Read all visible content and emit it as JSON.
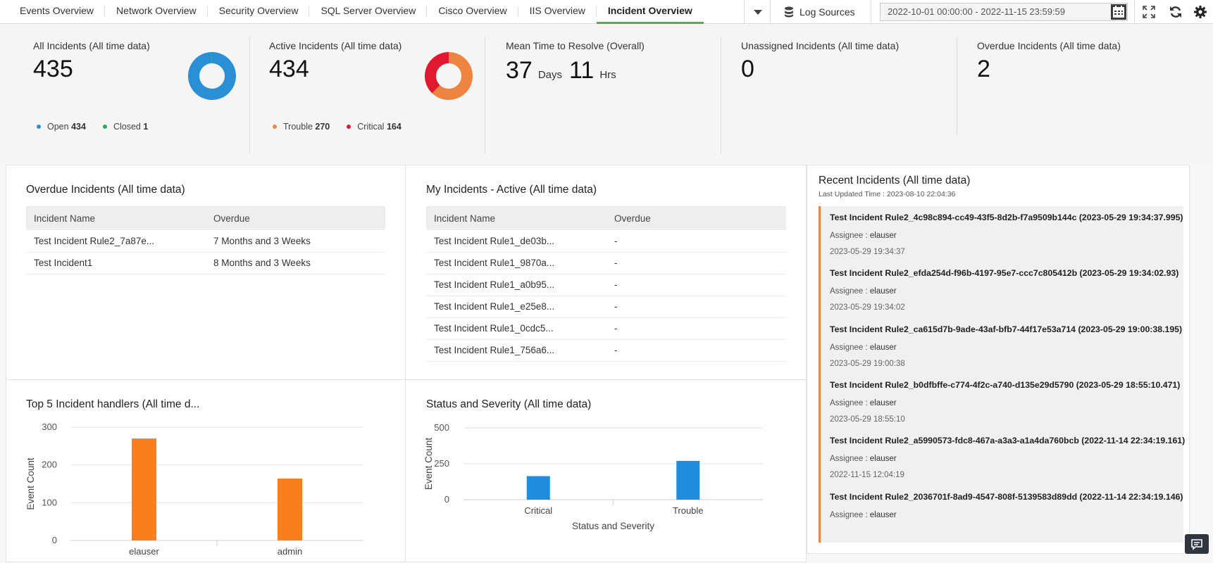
{
  "tabs": [
    {
      "label": "Events Overview",
      "active": false
    },
    {
      "label": "Network Overview",
      "active": false
    },
    {
      "label": "Security Overview",
      "active": false
    },
    {
      "label": "SQL Server Overview",
      "active": false
    },
    {
      "label": "Cisco Overview",
      "active": false
    },
    {
      "label": "IIS Overview",
      "active": false
    },
    {
      "label": "Incident Overview",
      "active": true
    }
  ],
  "toolbar": {
    "log_sources_label": "Log Sources",
    "date_range": "2022-10-01 00:00:00 - 2022-11-15 23:59:59"
  },
  "kpis": {
    "all": {
      "title": "All Incidents (All time data)",
      "value": "435",
      "open_label": "Open",
      "open_value": "434",
      "closed_label": "Closed",
      "closed_value": "1",
      "open_color": "#2b8fd6",
      "closed_color": "#27a85b"
    },
    "active": {
      "title": "Active Incidents (All time data)",
      "value": "434",
      "trouble_label": "Trouble",
      "trouble_value": "270",
      "critical_label": "Critical",
      "critical_value": "164",
      "trouble_color": "#ee8440",
      "critical_color": "#e0192f"
    },
    "mttr": {
      "title": "Mean Time to Resolve (Overall)",
      "days": "37",
      "days_unit": "Days",
      "hours": "11",
      "hours_unit": "Hrs"
    },
    "unassigned": {
      "title": "Unassigned Incidents (All time data)",
      "value": "0"
    },
    "overdue": {
      "title": "Overdue Incidents (All time data)",
      "value": "2"
    }
  },
  "overdue_panel": {
    "title": "Overdue Incidents (All time data)",
    "col_name": "Incident Name",
    "col_overdue": "Overdue",
    "rows": [
      {
        "name": "Test Incident Rule2_7a87e...",
        "overdue": "7 Months and 3 Weeks"
      },
      {
        "name": "Test Incident1",
        "overdue": "8 Months and 3 Weeks"
      }
    ]
  },
  "my_panel": {
    "title": "My Incidents - Active (All time data)",
    "col_name": "Incident Name",
    "col_overdue": "Overdue",
    "rows": [
      {
        "name": "Test Incident Rule1_de03b...",
        "overdue": "-"
      },
      {
        "name": "Test Incident Rule1_9870a...",
        "overdue": "-"
      },
      {
        "name": "Test Incident Rule1_a0b95...",
        "overdue": "-"
      },
      {
        "name": "Test Incident Rule1_e25e8...",
        "overdue": "-"
      },
      {
        "name": "Test Incident Rule1_0cdc5...",
        "overdue": "-"
      },
      {
        "name": "Test Incident Rule1_756a6...",
        "overdue": "-"
      }
    ]
  },
  "recent": {
    "title": "Recent Incidents (All time data)",
    "last_updated": "Last Updated Time : 2023-08-10 22:04:36",
    "assignee_label": "Assignee :",
    "items": [
      {
        "title": "Test Incident Rule2_4c98c894-cc49-43f5-8d2b-f7a9509b144c (2023-05-29 19:34:37.995)",
        "assignee": "elauser",
        "time": "2023-05-29 19:34:37"
      },
      {
        "title": "Test Incident Rule2_efda254d-f96b-4197-95e7-ccc7c805412b (2023-05-29 19:34:02.93)",
        "assignee": "elauser",
        "time": "2023-05-29 19:34:02"
      },
      {
        "title": "Test Incident Rule2_ca615d7b-9ade-43af-bfb7-44f17e53a714 (2023-05-29 19:00:38.195)",
        "assignee": "elauser",
        "time": "2023-05-29 19:00:38"
      },
      {
        "title": "Test Incident Rule2_b0dfbffe-c774-4f2c-a740-d135e29d5790 (2023-05-29 18:55:10.471)",
        "assignee": "elauser",
        "time": "2023-05-29 18:55:10"
      },
      {
        "title": "Test Incident Rule2_a5990573-fdc8-467a-a3a3-a1a4da760bcb (2022-11-14 22:34:19.161)",
        "assignee": "elauser",
        "time": "2022-11-15 12:04:19"
      },
      {
        "title": "Test Incident Rule2_2036701f-8ad9-4547-808f-5139583d89dd (2022-11-14 22:34:19.146)",
        "assignee": "elauser",
        "time": ""
      }
    ]
  },
  "chart_data": [
    {
      "type": "bar",
      "title": "Top 5 Incident handlers (All time d...",
      "ylabel": "Event Count",
      "xlabel": "",
      "categories": [
        "elauser",
        "admin"
      ],
      "values": [
        270,
        164
      ],
      "ylim": [
        0,
        300
      ],
      "yticks": [
        0,
        100,
        200,
        300
      ],
      "color": "#f97f1e",
      "grid": true
    },
    {
      "type": "bar",
      "title": "Status and Severity (All time data)",
      "ylabel": "Event Count",
      "xlabel": "Status and Severity",
      "categories": [
        "Critical",
        "Trouble"
      ],
      "values": [
        164,
        270
      ],
      "ylim": [
        0,
        500
      ],
      "yticks": [
        0,
        250,
        500
      ],
      "color": "#1f8ddc",
      "grid": true
    }
  ]
}
